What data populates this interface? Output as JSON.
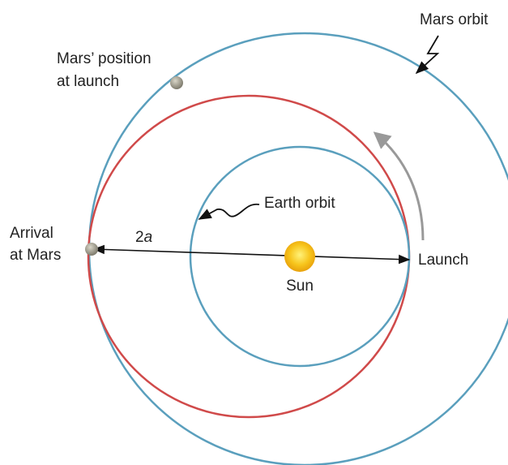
{
  "labels": {
    "mars_orbit": "Mars orbit",
    "mars_position": [
      "Mars’ position",
      "at launch"
    ],
    "earth_orbit": "Earth orbit",
    "arrival": [
      "Arrival",
      "at Mars"
    ],
    "major_axis": {
      "factor": "2",
      "symbol": "a"
    },
    "sun": "Sun",
    "launch": "Launch"
  }
}
